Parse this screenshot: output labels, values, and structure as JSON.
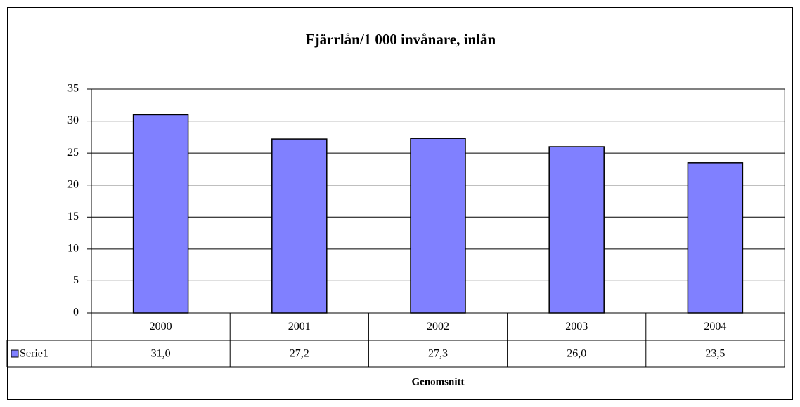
{
  "chart_data": {
    "type": "bar",
    "title": "Fjärrlån/1 000 invånare, inlån",
    "x_label": "Genomsnitt",
    "categories": [
      "2000",
      "2001",
      "2002",
      "2003",
      "2004"
    ],
    "series": [
      {
        "name": "Serie1",
        "color": "#8080ff",
        "values": [
          31.0,
          27.2,
          27.3,
          26.0,
          23.5
        ],
        "value_labels": [
          "31,0",
          "27,2",
          "27,3",
          "26,0",
          "23,5"
        ]
      }
    ],
    "ylim": [
      0,
      35
    ],
    "yticks": [
      0,
      5,
      10,
      15,
      20,
      25,
      30,
      35
    ],
    "grid": true,
    "data_table": true
  }
}
